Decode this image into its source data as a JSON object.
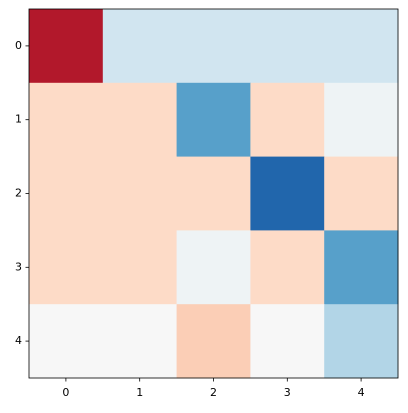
{
  "chart_data": {
    "type": "heatmap",
    "values": [
      [
        -0.8,
        0.2,
        0.2,
        0.2,
        0.2
      ],
      [
        -0.2,
        -0.2,
        0.55,
        -0.2,
        0.05
      ],
      [
        -0.2,
        -0.2,
        -0.2,
        0.8,
        -0.2
      ],
      [
        -0.2,
        -0.2,
        0.05,
        -0.2,
        0.55
      ],
      [
        0,
        0,
        -0.25,
        0,
        0.3
      ]
    ],
    "colormap": "RdBu",
    "clim": [
      -1,
      1
    ],
    "xlim": [
      -0.5,
      4.5
    ],
    "ylim": [
      4.5,
      -0.5
    ],
    "xticks": [
      0,
      1,
      2,
      3,
      4
    ],
    "yticks": [
      0,
      1,
      2,
      3,
      4
    ]
  }
}
